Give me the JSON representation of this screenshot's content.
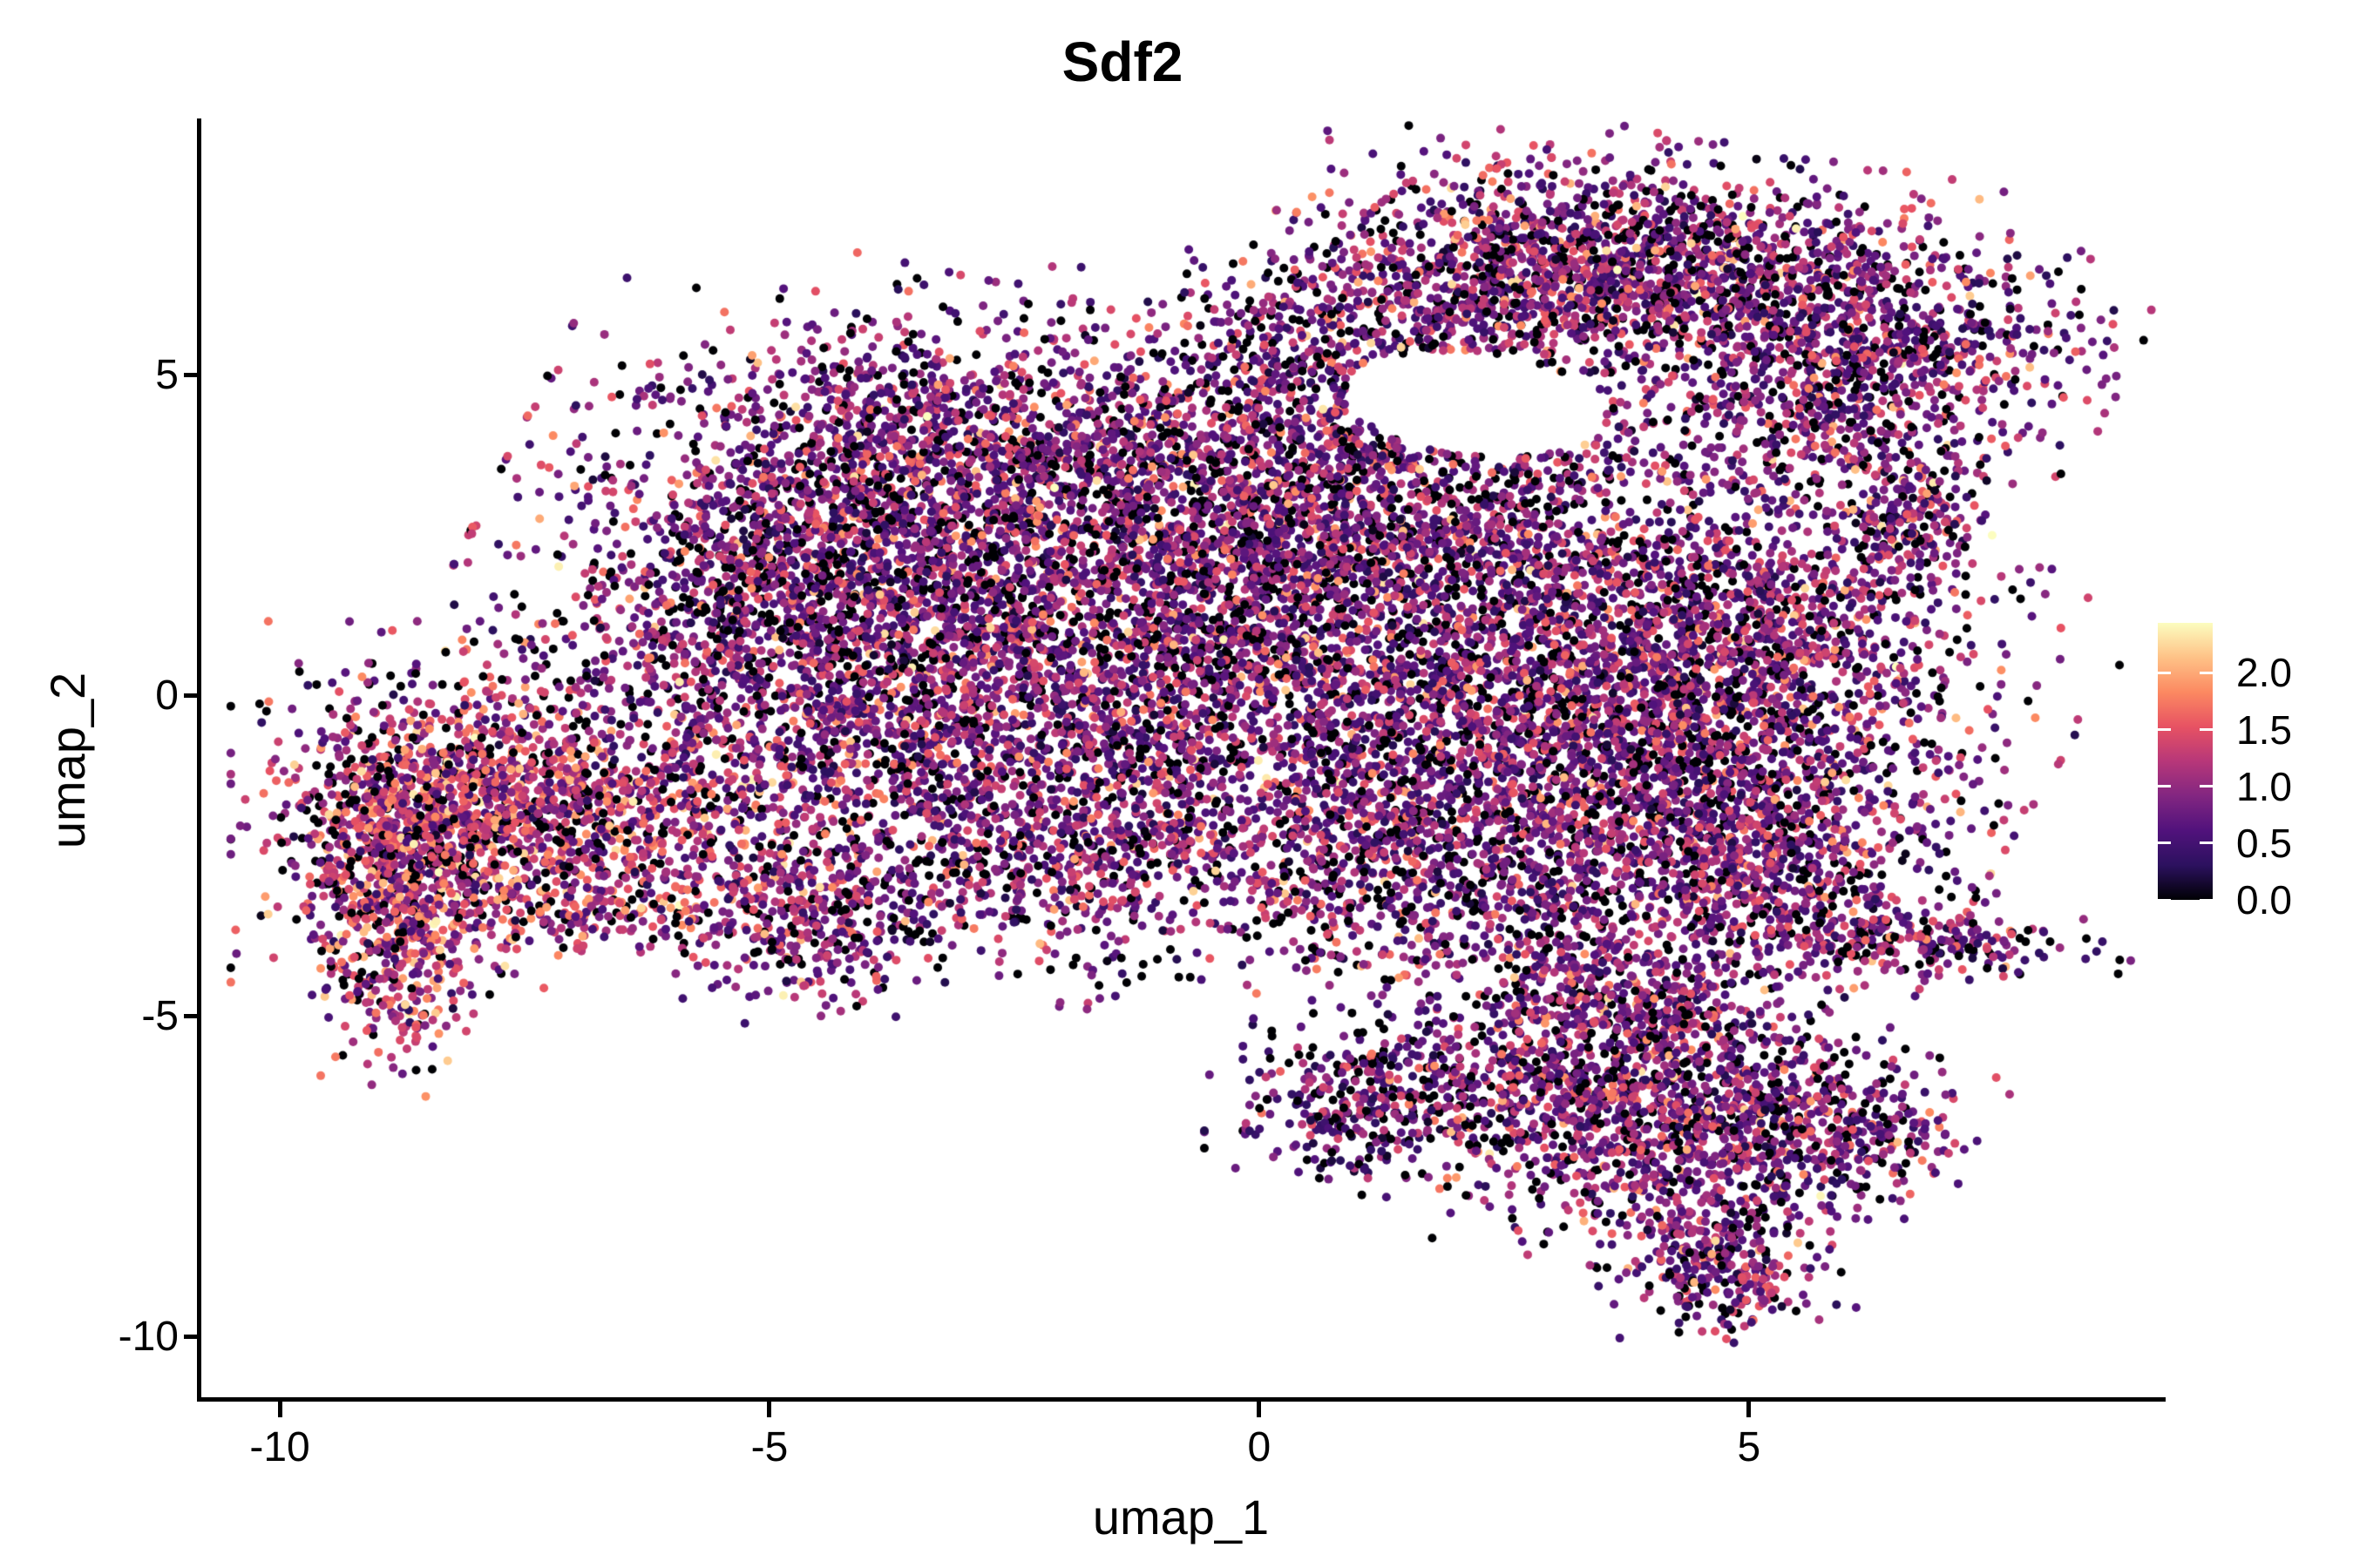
{
  "figure": {
    "background": "#ffffff",
    "text_color": "#000000"
  },
  "title": {
    "text": "Sdf2"
  },
  "axes": {
    "x": {
      "label": "umap_1",
      "tick_labels": [
        "-10",
        "-5",
        "0",
        "5"
      ]
    },
    "y": {
      "label": "umap_2",
      "tick_labels": [
        "5",
        "0",
        "-5",
        "-10"
      ]
    }
  },
  "colorbar": {
    "tick_labels": [
      "2.0",
      "1.5",
      "1.0",
      "0.5",
      "0.0"
    ]
  },
  "chart_data": {
    "type": "scatter",
    "title": "Sdf2",
    "xlabel": "umap_1",
    "ylabel": "umap_2",
    "xlim": [
      -10.81,
      9.21
    ],
    "ylim": [
      -10.97,
      8.95
    ],
    "x_ticks": [
      -10,
      -5,
      0,
      5
    ],
    "y_ticks": [
      5,
      0,
      -5,
      -10
    ],
    "grid": false,
    "point_radius_px": 5,
    "legend": {
      "type": "colorbar",
      "position": "right",
      "value_min": 0.0,
      "value_max": 2.44,
      "tick_values": [
        2.0,
        1.5,
        1.0,
        0.5,
        0.0
      ]
    },
    "colormap": {
      "name": "magma",
      "stops": [
        "#000004",
        "#2c115f",
        "#51127c",
        "#822681",
        "#b73779",
        "#e75263",
        "#fc8961",
        "#fec287",
        "#fcfdbf"
      ]
    },
    "seed": 20240901,
    "value_profiles": {
      "normal": {
        "zero_p": 0.18,
        "components": [
          {
            "mean": 0.55,
            "sd": 0.22,
            "w": 0.38
          },
          {
            "mean": 0.95,
            "sd": 0.25,
            "w": 0.34
          },
          {
            "mean": 1.35,
            "sd": 0.2,
            "w": 0.19
          },
          {
            "mean": 1.75,
            "sd": 0.25,
            "w": 0.08
          },
          {
            "mean": 2.15,
            "sd": 0.18,
            "w": 0.01
          }
        ]
      },
      "warm": {
        "zero_p": 0.16,
        "components": [
          {
            "mean": 0.7,
            "sd": 0.25,
            "w": 0.25
          },
          {
            "mean": 1.1,
            "sd": 0.25,
            "w": 0.3
          },
          {
            "mean": 1.5,
            "sd": 0.25,
            "w": 0.28
          },
          {
            "mean": 1.85,
            "sd": 0.2,
            "w": 0.15
          },
          {
            "mean": 2.25,
            "sd": 0.12,
            "w": 0.02
          }
        ]
      },
      "dark": {
        "zero_p": 0.28,
        "components": [
          {
            "mean": 0.45,
            "sd": 0.2,
            "w": 0.5
          },
          {
            "mean": 0.85,
            "sd": 0.25,
            "w": 0.35
          },
          {
            "mean": 1.3,
            "sd": 0.2,
            "w": 0.15
          }
        ]
      }
    },
    "hole": {
      "x": 2.2,
      "y": 4.55,
      "rx": 1.35,
      "ry": 0.8,
      "rot_deg": -12
    },
    "clusters": [
      {
        "x": -8.7,
        "y": -2.2,
        "sx": 0.6,
        "sy": 1.0,
        "rot_deg": -10,
        "n": 850,
        "profile": "warm"
      },
      {
        "x": -7.9,
        "y": -1.7,
        "sx": 1.0,
        "sy": 1.1,
        "rot_deg": 0,
        "n": 750,
        "profile": "warm"
      },
      {
        "x": -8.75,
        "y": -4.3,
        "sx": 0.32,
        "sy": 0.75,
        "rot_deg": 0,
        "n": 230,
        "profile": "warm"
      },
      {
        "x": -6.6,
        "y": -1.9,
        "sx": 1.15,
        "sy": 0.8,
        "rot_deg": 12,
        "n": 600,
        "profile": "warm"
      },
      {
        "x": -6.4,
        "y": -3.35,
        "sx": 1.2,
        "sy": 0.3,
        "rot_deg": -4,
        "n": 190,
        "profile": "warm"
      },
      {
        "x": -4.4,
        "y": -3.55,
        "sx": 0.6,
        "sy": 0.6,
        "rot_deg": 0,
        "n": 330,
        "profile": "normal"
      },
      {
        "x": -2.9,
        "y": 1.6,
        "sx": 2.0,
        "sy": 1.8,
        "rot_deg": -18,
        "n": 3300,
        "profile": "normal"
      },
      {
        "x": -2.7,
        "y": 4.1,
        "sx": 1.6,
        "sy": 0.8,
        "rot_deg": -8,
        "n": 900,
        "profile": "normal"
      },
      {
        "x": -4.9,
        "y": 1.8,
        "sx": 1.0,
        "sy": 1.4,
        "rot_deg": -30,
        "n": 800,
        "profile": "normal"
      },
      {
        "x": -3.0,
        "y": -1.1,
        "sx": 2.0,
        "sy": 1.1,
        "rot_deg": -10,
        "n": 1100,
        "profile": "normal"
      },
      {
        "x": -2.0,
        "y": -2.7,
        "sx": 1.3,
        "sy": 0.6,
        "rot_deg": 8,
        "n": 380,
        "profile": "normal"
      },
      {
        "x": -1.5,
        "y": -4.3,
        "sx": 0.45,
        "sy": 0.3,
        "rot_deg": 0,
        "n": 26,
        "profile": "dark"
      },
      {
        "x": 0.4,
        "y": 2.6,
        "sx": 1.1,
        "sy": 1.7,
        "rot_deg": 0,
        "n": 900,
        "profile": "normal"
      },
      {
        "x": 1.8,
        "y": 2.3,
        "sx": 1.9,
        "sy": 0.75,
        "rot_deg": -8,
        "n": 950,
        "profile": "normal"
      },
      {
        "x": 1.7,
        "y": 5.9,
        "sx": 1.6,
        "sy": 0.85,
        "rot_deg": 30,
        "n": 1100,
        "profile": "normal"
      },
      {
        "x": 4.3,
        "y": 6.6,
        "sx": 1.55,
        "sy": 0.8,
        "rot_deg": -14,
        "n": 1500,
        "profile": "normal"
      },
      {
        "x": 6.1,
        "y": 4.8,
        "sx": 0.9,
        "sy": 1.2,
        "rot_deg": -52,
        "n": 900,
        "profile": "normal"
      },
      {
        "x": 6.65,
        "y": 2.7,
        "sx": 0.35,
        "sy": 0.5,
        "rot_deg": -35,
        "n": 200,
        "profile": "normal"
      },
      {
        "x": 2.1,
        "y": 4.0,
        "sx": 1.5,
        "sy": 0.55,
        "rot_deg": -5,
        "n": 420,
        "profile": "normal"
      },
      {
        "x": 3.3,
        "y": -0.6,
        "sx": 1.8,
        "sy": 1.6,
        "rot_deg": -22,
        "n": 3000,
        "profile": "normal"
      },
      {
        "x": 5.1,
        "y": 0.7,
        "sx": 1.05,
        "sy": 1.0,
        "rot_deg": -30,
        "n": 800,
        "profile": "normal"
      },
      {
        "x": 1.6,
        "y": -2.6,
        "sx": 1.3,
        "sy": 1.0,
        "rot_deg": -15,
        "n": 700,
        "profile": "normal"
      },
      {
        "x": 6.7,
        "y": -3.85,
        "sx": 0.85,
        "sy": 0.22,
        "rot_deg": -3,
        "n": 230,
        "profile": "normal"
      },
      {
        "x": 5.0,
        "y": -2.6,
        "sx": 0.95,
        "sy": 0.85,
        "rot_deg": -35,
        "n": 650,
        "profile": "normal"
      },
      {
        "x": 1.0,
        "y": -6.4,
        "sx": 0.6,
        "sy": 0.55,
        "rot_deg": 0,
        "n": 300,
        "profile": "dark"
      },
      {
        "x": 2.3,
        "y": -6.1,
        "sx": 0.8,
        "sy": 0.55,
        "rot_deg": 0,
        "n": 160,
        "profile": "normal"
      },
      {
        "x": 4.0,
        "y": -6.5,
        "sx": 1.15,
        "sy": 0.95,
        "rot_deg": -15,
        "n": 1150,
        "profile": "normal"
      },
      {
        "x": 4.7,
        "y": -8.8,
        "sx": 0.5,
        "sy": 0.55,
        "rot_deg": 15,
        "n": 330,
        "profile": "normal"
      },
      {
        "x": 5.8,
        "y": -6.8,
        "sx": 0.75,
        "sy": 0.5,
        "rot_deg": -8,
        "n": 330,
        "profile": "normal"
      },
      {
        "x": 3.6,
        "y": -4.7,
        "sx": 0.85,
        "sy": 0.7,
        "rot_deg": -20,
        "n": 480,
        "profile": "normal"
      },
      {
        "x": -0.5,
        "y": 0.3,
        "sx": 1.2,
        "sy": 1.2,
        "rot_deg": 0,
        "n": 450,
        "profile": "normal"
      }
    ]
  }
}
